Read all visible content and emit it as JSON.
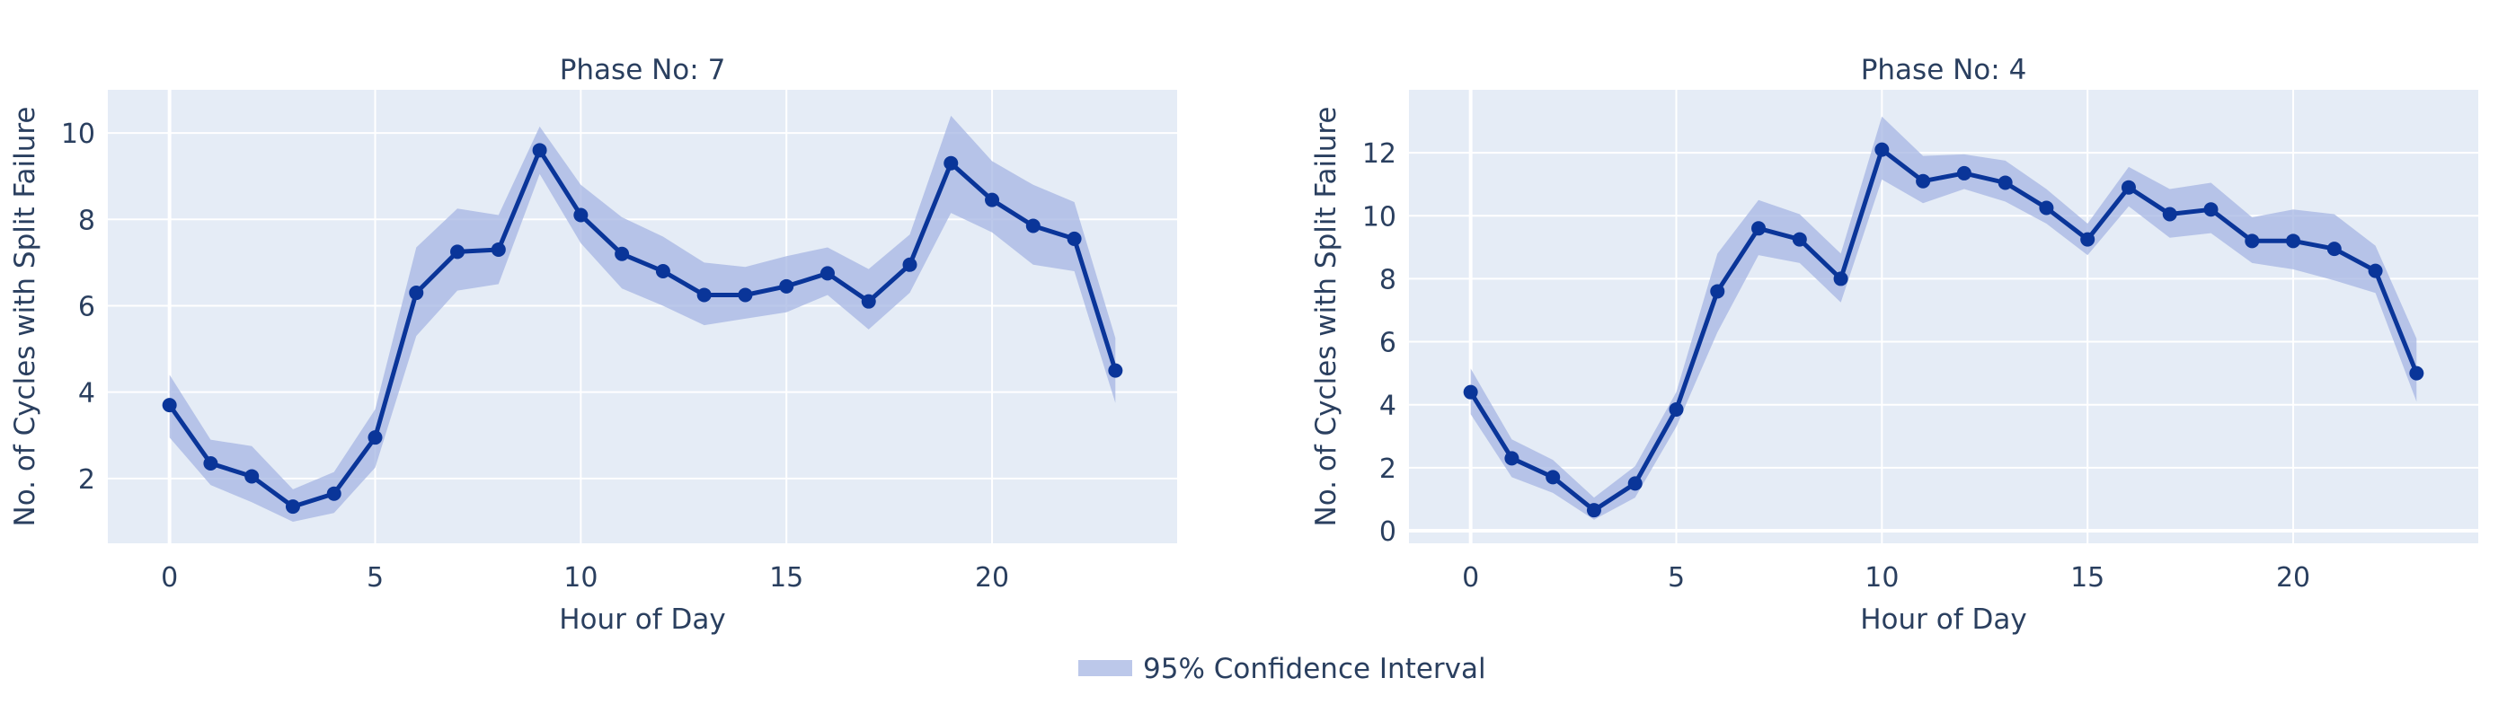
{
  "colors": {
    "plot_bg": "#E5ECF6",
    "grid": "#ffffff",
    "line": "#0a3599",
    "band": "#a5b6e3",
    "text": "#2a3f5f"
  },
  "legend": {
    "ci_label": "95% Confidence Interval",
    "placement": "bottom-center"
  },
  "chart_data": [
    {
      "type": "line",
      "title": "Phase No: 7",
      "xlabel": "Hour of Day",
      "ylabel": "No. of Cycles with Split Failure",
      "xlim": [
        -1.5,
        24.5
      ],
      "ylim": [
        0.5,
        11
      ],
      "xticks": [
        0,
        5,
        10,
        15,
        20
      ],
      "yticks": [
        2,
        4,
        6,
        8,
        10
      ],
      "x": [
        0,
        1,
        2,
        3,
        4,
        5,
        6,
        7,
        8,
        9,
        10,
        11,
        12,
        13,
        14,
        15,
        16,
        17,
        18,
        19,
        20,
        21,
        22,
        23
      ],
      "y": [
        3.7,
        2.35,
        2.05,
        1.35,
        1.65,
        2.95,
        6.3,
        7.25,
        7.3,
        9.6,
        8.1,
        7.2,
        6.8,
        6.25,
        6.25,
        6.45,
        6.75,
        6.1,
        6.95,
        9.3,
        8.45,
        7.85,
        7.55,
        4.5
      ],
      "ci_lower": [
        2.95,
        1.85,
        1.45,
        1.0,
        1.2,
        2.25,
        5.3,
        6.35,
        6.5,
        9.05,
        7.45,
        6.4,
        6.0,
        5.55,
        5.7,
        5.85,
        6.25,
        5.45,
        6.3,
        8.15,
        7.7,
        6.95,
        6.8,
        3.75
      ],
      "ci_upper": [
        4.4,
        2.9,
        2.75,
        1.75,
        2.15,
        3.6,
        7.35,
        8.25,
        8.1,
        10.15,
        8.8,
        8.05,
        7.6,
        7.0,
        6.9,
        7.15,
        7.35,
        6.85,
        7.65,
        10.4,
        9.35,
        8.8,
        8.4,
        5.25
      ]
    },
    {
      "type": "line",
      "title": "Phase No: 4",
      "xlabel": "Hour of Day",
      "ylabel": "No. of Cycles with Split Failure",
      "xlim": [
        -1.5,
        24.5
      ],
      "ylim": [
        -0.4,
        14
      ],
      "xticks": [
        0,
        5,
        10,
        15,
        20
      ],
      "yticks": [
        0,
        2,
        4,
        6,
        8,
        10,
        12
      ],
      "x": [
        0,
        1,
        2,
        3,
        4,
        5,
        6,
        7,
        8,
        9,
        10,
        11,
        12,
        13,
        14,
        15,
        16,
        17,
        18,
        19,
        20,
        21,
        22,
        23
      ],
      "y": [
        4.4,
        2.3,
        1.7,
        0.65,
        1.5,
        3.85,
        7.6,
        9.6,
        9.25,
        8.0,
        12.1,
        11.1,
        11.35,
        11.05,
        10.25,
        9.25,
        10.9,
        10.05,
        10.2,
        9.2,
        9.2,
        8.95,
        8.25,
        5.0
      ],
      "ci_lower": [
        3.7,
        1.7,
        1.2,
        0.35,
        1.05,
        3.3,
        6.3,
        8.75,
        8.5,
        7.25,
        11.15,
        10.4,
        10.85,
        10.45,
        9.75,
        8.75,
        10.3,
        9.3,
        9.45,
        8.5,
        8.3,
        7.95,
        7.55,
        4.1
      ],
      "ci_upper": [
        5.15,
        2.9,
        2.25,
        1.05,
        2.05,
        4.4,
        8.8,
        10.5,
        10.05,
        8.8,
        13.15,
        11.9,
        11.95,
        11.75,
        10.85,
        9.75,
        11.55,
        10.85,
        11.05,
        9.95,
        10.2,
        10.05,
        9.05,
        6.1
      ]
    }
  ]
}
